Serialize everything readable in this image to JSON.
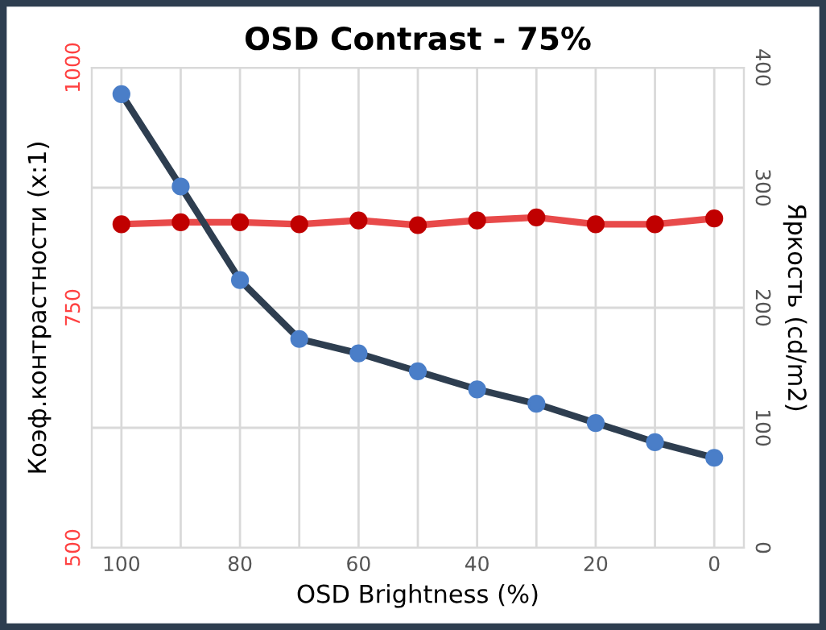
{
  "chart_data": {
    "type": "line",
    "title": "OSD Contrast - 75%",
    "xlabel": "OSD Brightness (%)",
    "ylabel": "Коэф.контрастности (x:1)",
    "y2label": "Яркость (cd/m2)",
    "categories": [
      "100",
      null,
      "80",
      null,
      "60",
      null,
      "40",
      null,
      "20",
      null,
      "0"
    ],
    "series": [
      {
        "color": "#e84a4a",
        "values": [
          837,
          839,
          839,
          837,
          841,
          836,
          841,
          844,
          837,
          837,
          843
        ]
      },
      {
        "color": "#2e3e50",
        "axis": "y2",
        "values": [
          378,
          301,
          223,
          174,
          162,
          147,
          132,
          120,
          104,
          88,
          75
        ]
      }
    ],
    "ylim": [
      500,
      1000
    ],
    "yticks": [
      500,
      {
        "value": 625,
        "label": null
      },
      750,
      {
        "value": 875,
        "label": null
      },
      1000
    ],
    "y2lim": [
      0,
      400
    ],
    "y2ticks": [
      0,
      100,
      200,
      300,
      400
    ],
    "grid": true,
    "marker": "circle",
    "line_style": "solid",
    "legend": false
  }
}
